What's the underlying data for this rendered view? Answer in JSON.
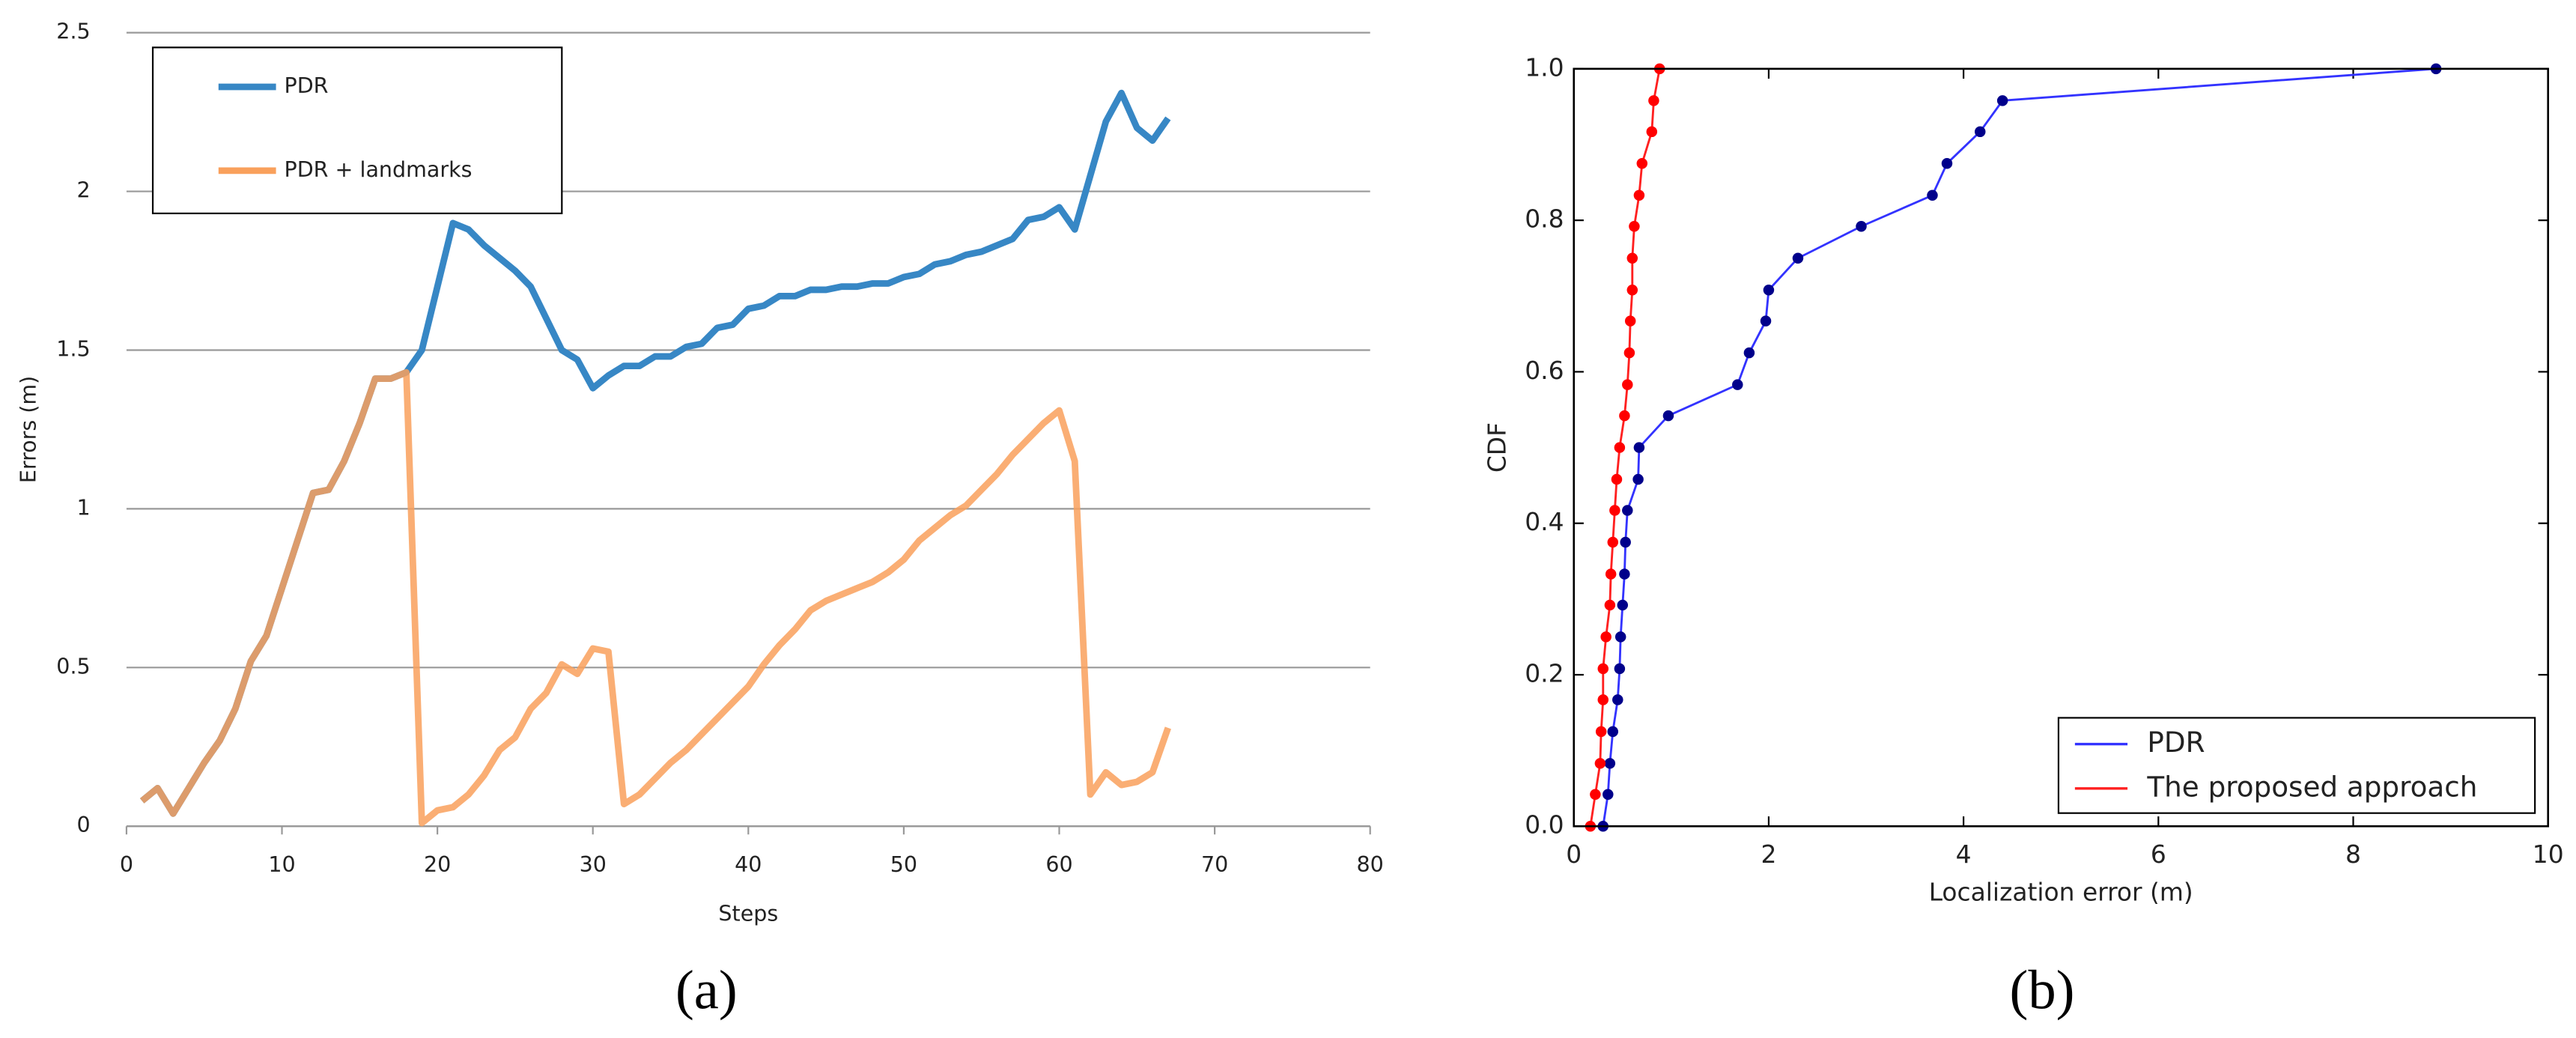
{
  "chart_data": [
    {
      "type": "line",
      "caption": "(a)",
      "x_label": "Steps",
      "y_label": "Errors (m)",
      "x": [
        1,
        2,
        3,
        4,
        5,
        6,
        7,
        8,
        9,
        10,
        11,
        12,
        13,
        14,
        15,
        16,
        17,
        18,
        19,
        20,
        21,
        22,
        23,
        24,
        25,
        26,
        27,
        28,
        29,
        30,
        31,
        32,
        33,
        34,
        35,
        36,
        37,
        38,
        39,
        40,
        41,
        42,
        43,
        44,
        45,
        46,
        47,
        48,
        49,
        50,
        51,
        52,
        53,
        54,
        55,
        56,
        57,
        58,
        59,
        60,
        61,
        62,
        63,
        64,
        65,
        66,
        67
      ],
      "series": [
        {
          "name": "PDR",
          "color": "#3787c5",
          "values": [
            0.08,
            0.12,
            0.04,
            0.12,
            0.2,
            0.27,
            0.37,
            0.52,
            0.6,
            0.75,
            0.9,
            1.05,
            1.06,
            1.15,
            1.27,
            1.41,
            1.41,
            1.43,
            1.5,
            1.7,
            1.9,
            1.88,
            1.83,
            1.79,
            1.75,
            1.7,
            1.6,
            1.5,
            1.47,
            1.38,
            1.42,
            1.45,
            1.45,
            1.48,
            1.48,
            1.51,
            1.52,
            1.57,
            1.58,
            1.63,
            1.64,
            1.67,
            1.67,
            1.69,
            1.69,
            1.7,
            1.7,
            1.71,
            1.71,
            1.73,
            1.74,
            1.77,
            1.78,
            1.8,
            1.81,
            1.83,
            1.85,
            1.91,
            1.92,
            1.95,
            1.88,
            2.05,
            2.22,
            2.31,
            2.2,
            2.16,
            2.23
          ]
        },
        {
          "name": "PDR + landmarks",
          "color": "#f9a05c",
          "values": [
            0.08,
            0.12,
            0.04,
            0.12,
            0.2,
            0.27,
            0.37,
            0.52,
            0.6,
            0.75,
            0.9,
            1.05,
            1.06,
            1.15,
            1.27,
            1.41,
            1.41,
            1.43,
            0.01,
            0.05,
            0.06,
            0.1,
            0.16,
            0.24,
            0.28,
            0.37,
            0.42,
            0.51,
            0.48,
            0.56,
            0.55,
            0.07,
            0.1,
            0.15,
            0.2,
            0.24,
            0.29,
            0.34,
            0.39,
            0.44,
            0.51,
            0.57,
            0.62,
            0.68,
            0.71,
            0.73,
            0.75,
            0.77,
            0.8,
            0.84,
            0.9,
            0.94,
            0.98,
            1.01,
            1.06,
            1.11,
            1.17,
            1.22,
            1.27,
            1.31,
            1.15,
            0.1,
            0.17,
            0.13,
            0.14,
            0.17,
            0.31
          ]
        }
      ],
      "xlim": [
        0,
        80
      ],
      "xticks": [
        0,
        10,
        20,
        30,
        40,
        50,
        60,
        70,
        80
      ],
      "ylim": [
        0,
        2.5
      ],
      "yticks": [
        0,
        0.5,
        1,
        1.5,
        2,
        2.5
      ],
      "grid": true,
      "legend": "upper left"
    },
    {
      "type": "line-markers",
      "caption": "(b)",
      "x_label": "Localization error (m)",
      "y_label": "CDF",
      "series": [
        {
          "name": "PDR",
          "color": "#3333ff",
          "marker_color": "#00008b",
          "x": [
            0.3,
            0.35,
            0.37,
            0.4,
            0.45,
            0.47,
            0.48,
            0.5,
            0.52,
            0.53,
            0.55,
            0.66,
            0.67,
            0.97,
            1.68,
            1.8,
            1.97,
            2.0,
            2.3,
            2.95,
            3.68,
            3.83,
            4.17,
            4.4,
            8.85
          ],
          "values": [
            0,
            0.042,
            0.083,
            0.125,
            0.167,
            0.208,
            0.25,
            0.292,
            0.333,
            0.375,
            0.417,
            0.458,
            0.5,
            0.542,
            0.583,
            0.625,
            0.667,
            0.708,
            0.75,
            0.792,
            0.833,
            0.875,
            0.917,
            0.958,
            1.0
          ]
        },
        {
          "name": "The proposed approach",
          "color": "#ff2020",
          "marker_color": "#ff0000",
          "x": [
            0.17,
            0.22,
            0.27,
            0.28,
            0.3,
            0.3,
            0.33,
            0.37,
            0.38,
            0.4,
            0.42,
            0.44,
            0.47,
            0.52,
            0.55,
            0.57,
            0.58,
            0.6,
            0.6,
            0.62,
            0.67,
            0.7,
            0.8,
            0.82,
            0.88
          ],
          "values": [
            0,
            0.042,
            0.083,
            0.125,
            0.167,
            0.208,
            0.25,
            0.292,
            0.333,
            0.375,
            0.417,
            0.458,
            0.5,
            0.542,
            0.583,
            0.625,
            0.667,
            0.708,
            0.75,
            0.792,
            0.833,
            0.875,
            0.917,
            0.958,
            1.0
          ]
        }
      ],
      "xlim": [
        0,
        10
      ],
      "xticks": [
        0,
        2,
        4,
        6,
        8,
        10
      ],
      "ylim": [
        0,
        1
      ],
      "yticks": [
        {
          "value": 0,
          "label": "0.0"
        },
        {
          "value": 0.2,
          "label": "0.2"
        },
        {
          "value": 0.4,
          "label": "0.4"
        },
        {
          "value": 0.6,
          "label": "0.6"
        },
        {
          "value": 0.8,
          "label": "0.8"
        },
        {
          "value": 1,
          "label": "1.0"
        }
      ],
      "grid": false,
      "legend": "lower right"
    }
  ]
}
